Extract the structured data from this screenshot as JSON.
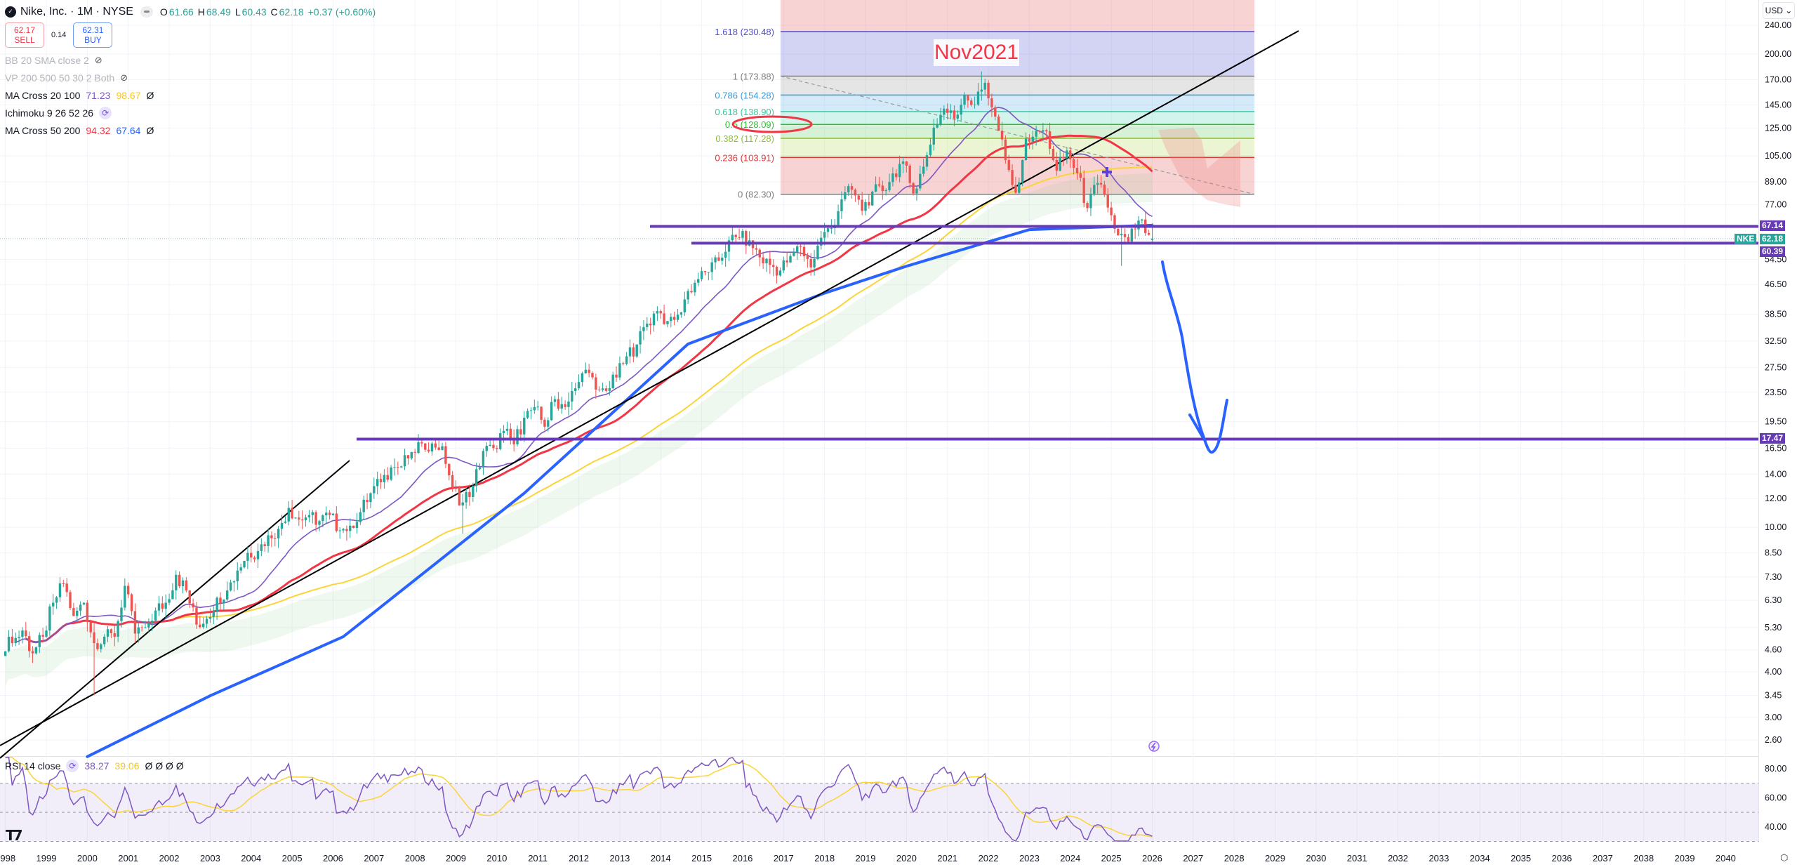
{
  "header": {
    "logo_icon": "nike-swoosh-icon",
    "title": "Nike, Inc. · 1M · NYSE",
    "ohlc": {
      "o_label": "O",
      "o": "61.66",
      "h_label": "H",
      "h": "68.49",
      "l_label": "L",
      "l": "60.43",
      "c_label": "C",
      "c": "62.18",
      "change": "+0.37 (+0.60%)"
    },
    "sell": {
      "price": "62.17",
      "label": "SELL"
    },
    "spread": "0.14",
    "buy": {
      "price": "62.31",
      "label": "BUY"
    }
  },
  "indicators": [
    {
      "label": "BB 20 SMA close 2",
      "hidden": true
    },
    {
      "label": "VP 200 500 50 30 2 Both",
      "hidden": true
    },
    {
      "label": "MA Cross 20 100",
      "v1": "71.23",
      "v2": "98.67",
      "extra": "Ø",
      "c1": "#7e57c2",
      "c2": "#fbd438"
    },
    {
      "label": "Ichimoku 9 26 52 26"
    },
    {
      "label": "MA Cross 50 200",
      "v1": "94.32",
      "v2": "67.64",
      "extra": "Ø",
      "c1": "#f23645",
      "c2": "#2962ff"
    }
  ],
  "rsi_legend": {
    "label": "RSI 14 close",
    "v1": "38.27",
    "v2": "39.06",
    "extras": "Ø Ø Ø Ø"
  },
  "currency": "USD",
  "price_tags": {
    "symbol": "NKE",
    "current": "62.18",
    "line_top": "67.14",
    "line_mid": "60.39",
    "line_low": "17.47"
  },
  "colors": {
    "up": "#26a69a",
    "down": "#ef5350",
    "sma20": "#7e57c2",
    "sma50": "#f23645",
    "sma100": "#fbd438",
    "sma200": "#2962ff",
    "hline": "#673ab7",
    "arrow": "#2962ff"
  },
  "chart_data": {
    "type": "candlestick",
    "interval": "1M",
    "y_scale": "log",
    "x_ticks": [
      "1998",
      "1999",
      "2000",
      "2001",
      "2002",
      "2003",
      "2004",
      "2005",
      "2006",
      "2007",
      "2008",
      "2009",
      "2010",
      "2011",
      "2012",
      "2013",
      "2014",
      "2015",
      "2016",
      "2017",
      "2018",
      "2019",
      "2020",
      "2021",
      "2022",
      "2023",
      "2024",
      "2025",
      "2026",
      "2027",
      "2028",
      "2029",
      "2030",
      "2031",
      "2032",
      "2033",
      "2034",
      "2035",
      "2036",
      "2037",
      "2038",
      "2039",
      "2040"
    ],
    "y_ticks": [
      "240.00",
      "200.00",
      "170.00",
      "145.00",
      "125.00",
      "105.00",
      "89.00",
      "77.00",
      "54.50",
      "46.50",
      "38.50",
      "32.50",
      "27.50",
      "23.50",
      "19.50",
      "16.50",
      "14.00",
      "12.00",
      "10.00",
      "8.50",
      "7.30",
      "6.30",
      "5.30",
      "4.60",
      "4.00",
      "3.45",
      "3.00",
      "2.60"
    ],
    "quarterly_close": {
      "start": "1998-Q1",
      "values": [
        4.8,
        5.2,
        4.5,
        5.0,
        6.2,
        7.0,
        5.7,
        6.2,
        4.8,
        5.0,
        5.0,
        6.9,
        5.1,
        5.3,
        5.9,
        6.2,
        7.4,
        6.7,
        5.4,
        5.6,
        6.4,
        6.7,
        7.6,
        8.5,
        8.6,
        9.5,
        9.9,
        11.3,
        10.5,
        10.8,
        10.4,
        10.8,
        9.8,
        10.1,
        11.0,
        12.4,
        13.3,
        14.6,
        14.7,
        16.1,
        17.0,
        17.0,
        16.7,
        12.8,
        11.7,
        13.0,
        16.2,
        16.5,
        18.4,
        16.9,
        20.0,
        21.4,
        18.9,
        22.5,
        21.4,
        24.1,
        27.1,
        23.9,
        23.7,
        25.8,
        29.5,
        31.8,
        36.3,
        39.3,
        36.9,
        38.4,
        44.6,
        48.1,
        50.3,
        54.0,
        61.5,
        62.5,
        61.5,
        55.2,
        52.6,
        50.8,
        55.7,
        59.0,
        51.8,
        62.5,
        66.4,
        79.7,
        84.7,
        74.1,
        83.7,
        84.0,
        93.9,
        101.3,
        82.7,
        98.0,
        125.5,
        141.5,
        132.9,
        154.5,
        145.2,
        166.7,
        134.6,
        102.2,
        83.1,
        117.0,
        122.9,
        122.6,
        95.6,
        108.6,
        94.0,
        75.4,
        88.4,
        75.7,
        63.5,
        61.0,
        69.7,
        63.7
      ]
    },
    "extremes": [
      {
        "date": "2000-03",
        "low": 3.45
      },
      {
        "date": "2009-03",
        "low": 9.6
      },
      {
        "date": "2021-11",
        "high": 179.1
      },
      {
        "date": "2022-10",
        "low": 82.2
      },
      {
        "date": "2025-04",
        "low": 52.3
      }
    ],
    "last_candle": {
      "date": "2026-01",
      "open": 61.66,
      "high": 68.49,
      "low": 60.43,
      "close": 62.18
    },
    "sma200": [
      {
        "date": "2000-01",
        "value": 2.34
      },
      {
        "date": "2003-01",
        "value": 3.44
      },
      {
        "date": "2006-04",
        "value": 5.0
      },
      {
        "date": "2010-09",
        "value": 12.4
      },
      {
        "date": "2014-09",
        "value": 31.9
      },
      {
        "date": "2018-01",
        "value": 44.0
      },
      {
        "date": "2020-01",
        "value": 52.2
      },
      {
        "date": "2023-01",
        "value": 65.8
      },
      {
        "date": "2026-01",
        "value": 67.64
      }
    ],
    "fibonacci": [
      {
        "ratio": "1.618",
        "price": 230.48,
        "label": "1.618 (230.48)",
        "color": "#5050d0",
        "fill": "rgba(110,110,220,0.30)"
      },
      {
        "ratio": "1",
        "price": 173.88,
        "label": "1 (173.88)",
        "color": "#808080",
        "fill": "rgba(150,150,150,0.25)"
      },
      {
        "ratio": "0.786",
        "price": 154.28,
        "label": "0.786 (154.28)",
        "color": "#3a9bd8",
        "fill": "rgba(100,180,230,0.28)"
      },
      {
        "ratio": "0.618",
        "price": 138.9,
        "label": "0.618 (138.90)",
        "color": "#37c9a0",
        "fill": "rgba(80,210,180,0.25)"
      },
      {
        "ratio": "0.5",
        "price": 128.09,
        "label": "0.5 (128.09)",
        "color": "#2ec02e",
        "fill": "rgba(90,200,90,0.25)"
      },
      {
        "ratio": "0.382",
        "price": 117.28,
        "label": "0.382 (117.28)",
        "color": "#8ec030",
        "fill": "rgba(190,220,110,0.30)"
      },
      {
        "ratio": "0.236",
        "price": 103.91,
        "label": "0.236 (103.91)",
        "color": "#e03535",
        "fill": "rgba(230,110,110,0.30)"
      },
      {
        "ratio": "0",
        "price": 82.3,
        "label": "0 (82.30)",
        "color": "#808080",
        "fill": ""
      }
    ],
    "horizontal_lines": [
      67.14,
      60.39,
      17.47
    ],
    "annotation": "Nov2021",
    "rsi": {
      "ticks": [
        "80.00",
        "60.00",
        "40.00"
      ],
      "levels": [
        70,
        50,
        30
      ],
      "period": 14
    }
  }
}
